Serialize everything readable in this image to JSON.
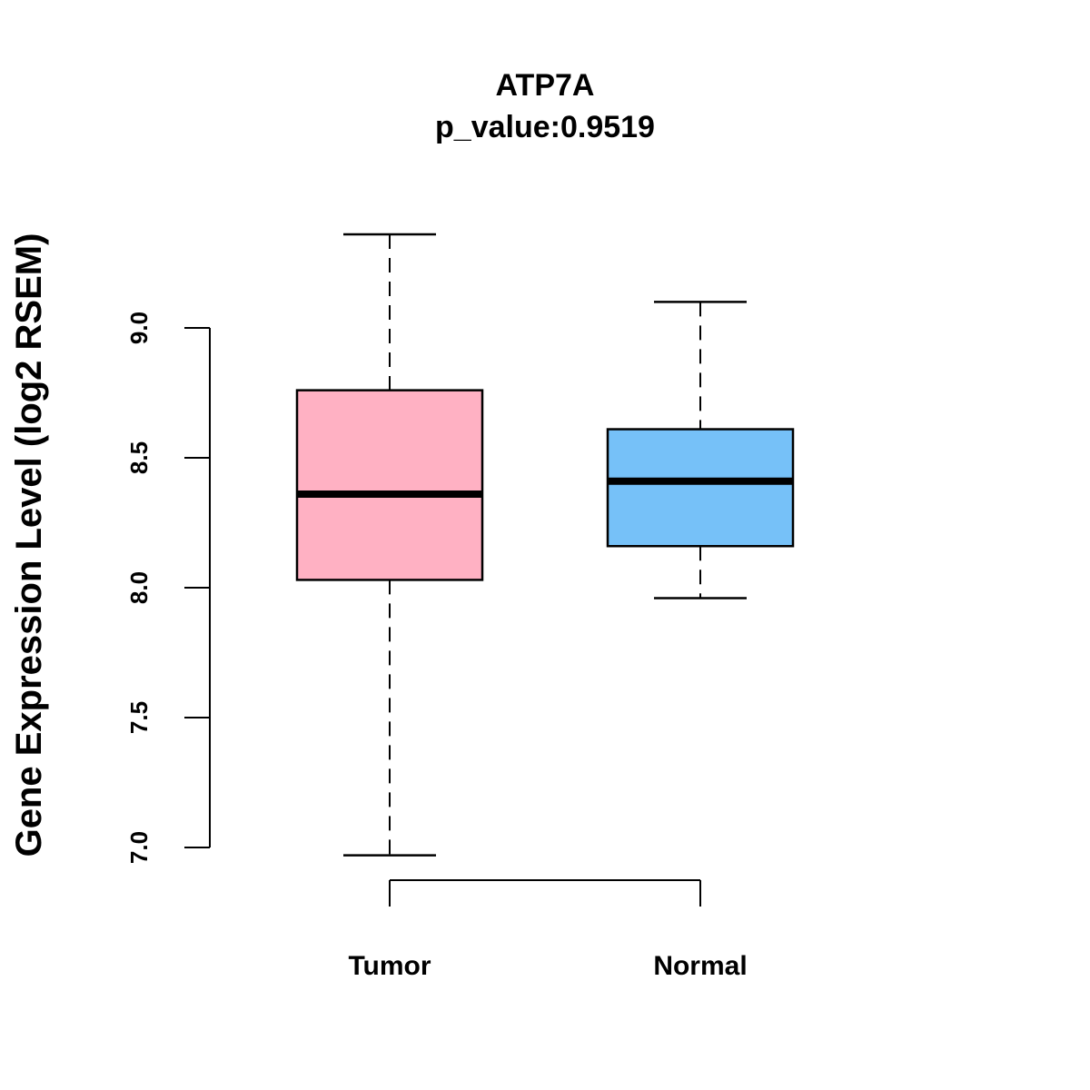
{
  "chart_data": {
    "type": "box",
    "title": "ATP7A",
    "subtitle": "p_value:0.9519",
    "xlabel": "",
    "ylabel": "Gene Expression Level (log2 RSEM)",
    "ylim": [
      6.9,
      9.4
    ],
    "yticks": [
      7.0,
      7.5,
      8.0,
      8.5,
      9.0
    ],
    "ytick_labels": [
      "7.0",
      "7.5",
      "8.0",
      "8.5",
      "9.0"
    ],
    "grid": false,
    "categories": [
      "Tumor",
      "Normal"
    ],
    "series": [
      {
        "name": "Tumor",
        "color": "#FFB1C3",
        "whisker_low": 6.97,
        "q1": 8.03,
        "median": 8.36,
        "q3": 8.76,
        "whisker_high": 9.36
      },
      {
        "name": "Normal",
        "color": "#76C1F8",
        "whisker_low": 7.96,
        "q1": 8.16,
        "median": 8.41,
        "q3": 8.61,
        "whisker_high": 9.1
      }
    ]
  }
}
